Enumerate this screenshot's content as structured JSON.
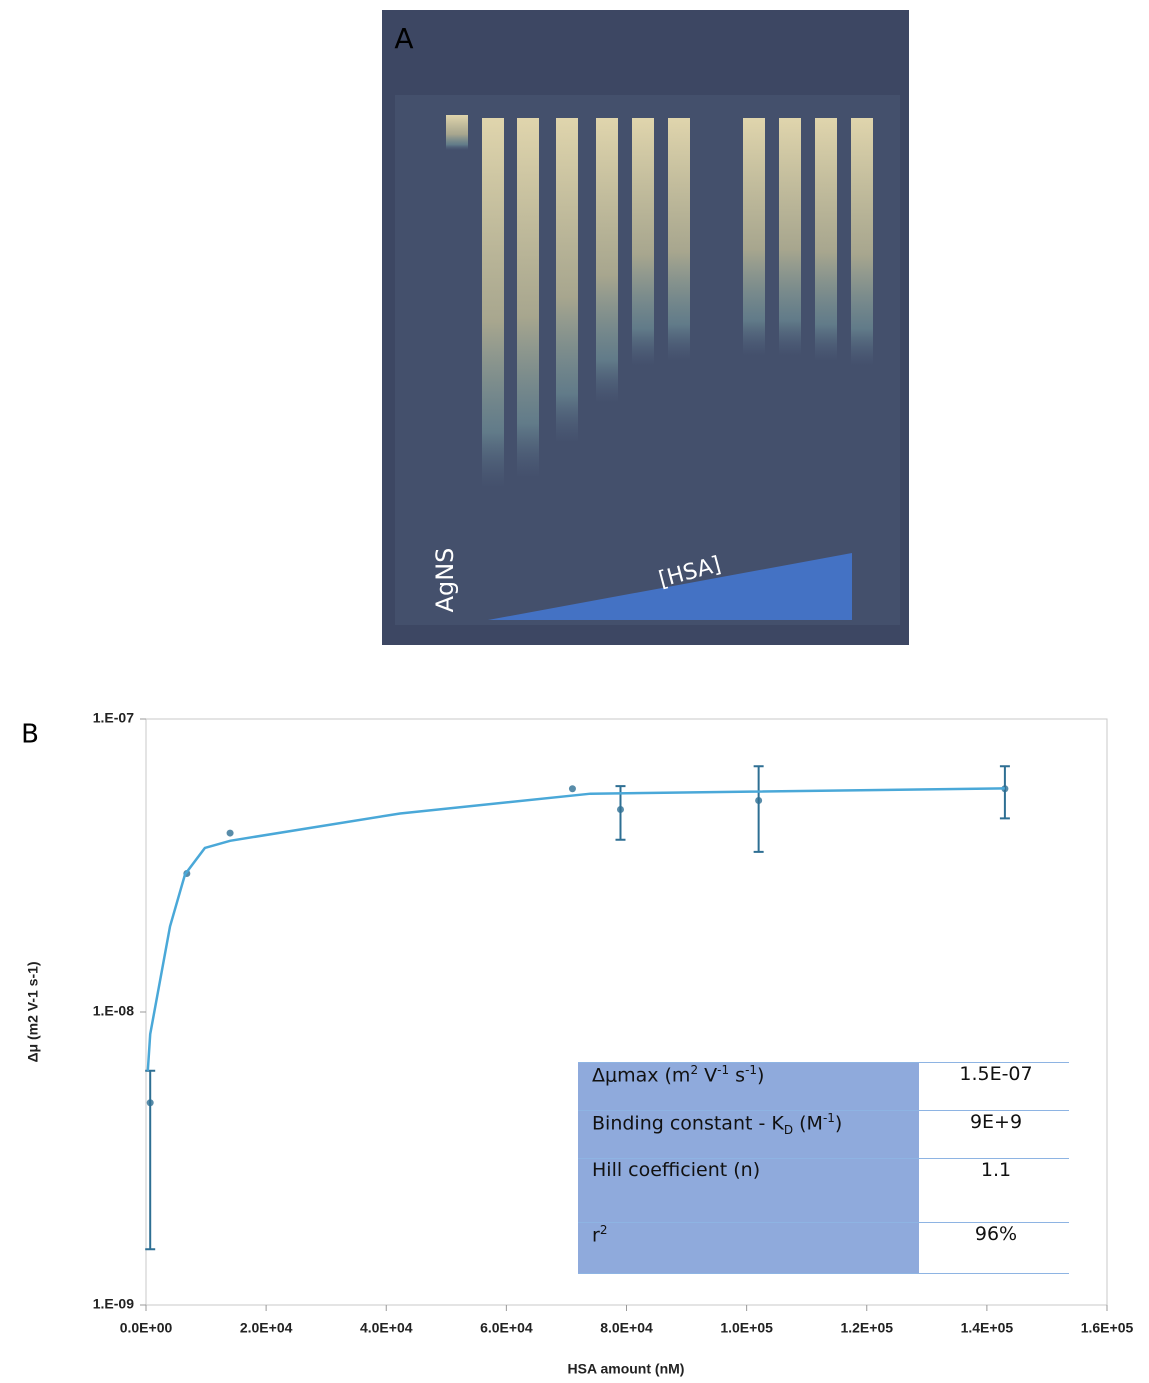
{
  "panel_a": {
    "label": "A",
    "sample_label": "AgNS",
    "gradient_label": "[HSA]"
  },
  "panel_b": {
    "label": "B"
  },
  "chart_data": {
    "type": "scatter",
    "x_label": "HSA amount (nM)",
    "y_label": "Δμ (m2 V-1 s-1)",
    "xlim": [
      0,
      160000
    ],
    "ylim": [
      1e-09,
      1e-07
    ],
    "log_y": true,
    "xticks": [
      {
        "value": 0,
        "label": "0.0E+00"
      },
      {
        "value": 20000,
        "label": "2.0E+04"
      },
      {
        "value": 40000,
        "label": "4.0E+04"
      },
      {
        "value": 60000,
        "label": "6.0E+04"
      },
      {
        "value": 80000,
        "label": "8.0E+04"
      },
      {
        "value": 100000,
        "label": "1.0E+05"
      },
      {
        "value": 120000,
        "label": "1.2E+05"
      },
      {
        "value": 140000,
        "label": "1.4E+05"
      },
      {
        "value": 160000,
        "label": "1.6E+05"
      }
    ],
    "yticks": [
      {
        "value": 1e-09,
        "label": "1.E-09"
      },
      {
        "value": 1e-08,
        "label": "1.E-08"
      },
      {
        "value": 1e-07,
        "label": "1.E-07"
      }
    ],
    "series": [
      {
        "type": "scatter",
        "color": "#2e6f93",
        "x": [
          700,
          6800,
          14000,
          71000,
          79000,
          102000,
          143000
        ],
        "values": [
          4.9e-09,
          2.97e-08,
          4.08e-08,
          5.78e-08,
          4.91e-08,
          5.27e-08,
          5.78e-08
        ],
        "lower": [
          1.55e-09,
          null,
          null,
          null,
          3.87e-08,
          3.52e-08,
          4.58e-08
        ],
        "upper": [
          6.3e-09,
          null,
          null,
          null,
          5.9e-08,
          6.9e-08,
          6.9e-08
        ]
      },
      {
        "type": "line",
        "color": "#4aa8d8",
        "x": [
          300,
          700,
          4000,
          6500,
          9800,
          14000,
          42300,
          74000,
          100600,
          143000
        ],
        "values": [
          6.3e-09,
          8.4e-09,
          1.96e-08,
          2.95e-08,
          3.63e-08,
          3.84e-08,
          4.76e-08,
          5.56e-08,
          5.65e-08,
          5.8e-08
        ]
      }
    ]
  },
  "table": {
    "rows": [
      {
        "label": [
          "Δμmax (m",
          "2",
          " V",
          "-1",
          " s",
          "-1",
          ")"
        ],
        "value": "1.5E-07"
      },
      {
        "label": [
          "Binding constant - K",
          "D",
          " (M",
          "-1",
          ")"
        ],
        "value": "9E+9"
      },
      {
        "label": [
          "Hill coefficient (n)"
        ],
        "value": "1.1"
      },
      {
        "label": [
          "r",
          "2"
        ],
        "value": "96%"
      }
    ]
  }
}
